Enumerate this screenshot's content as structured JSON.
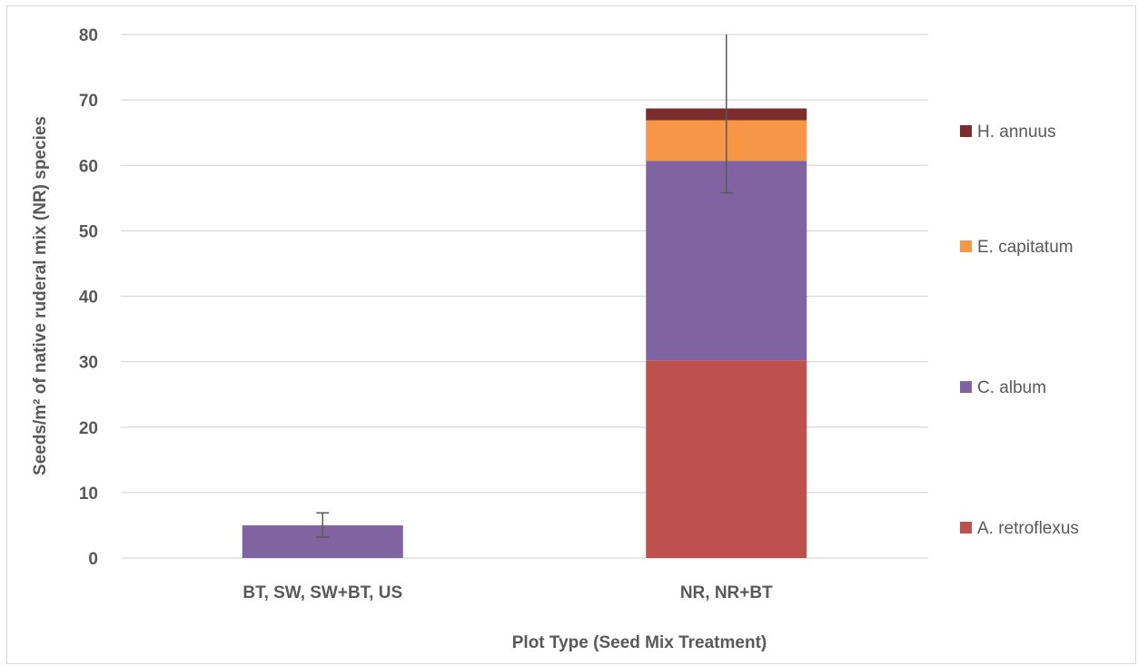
{
  "chart_data": {
    "type": "bar",
    "stacked": true,
    "title": "",
    "xlabel": "Plot Type (Seed Mix Treatment)",
    "ylabel": "Seeds/m² of native ruderal mix (NR) species",
    "ylim": [
      0,
      80
    ],
    "yticks": [
      0,
      10,
      20,
      30,
      40,
      50,
      60,
      70,
      80
    ],
    "grid": true,
    "legend_position": "right",
    "categories": [
      "BT, SW, SW+BT, US",
      "NR, NR+BT"
    ],
    "series": [
      {
        "name": "A. retroflexus",
        "color": "#c0504d",
        "values": [
          0,
          30.2
        ]
      },
      {
        "name": "C. album",
        "color": "#8064a2",
        "values": [
          5.0,
          30.5
        ]
      },
      {
        "name": "E. capitatum",
        "color": "#f79646",
        "values": [
          0,
          6.2
        ]
      },
      {
        "name": "H. annuus",
        "color": "#7b2c2c",
        "values": [
          0,
          1.8
        ]
      }
    ],
    "error_bars": [
      {
        "center": 5.0,
        "low": 3.2,
        "high": 6.9
      },
      {
        "center": 68.7,
        "low": 55.8,
        "high": 80
      }
    ],
    "legend_order": [
      "H. annuus",
      "E. capitatum",
      "C. album",
      "A. retroflexus"
    ]
  }
}
